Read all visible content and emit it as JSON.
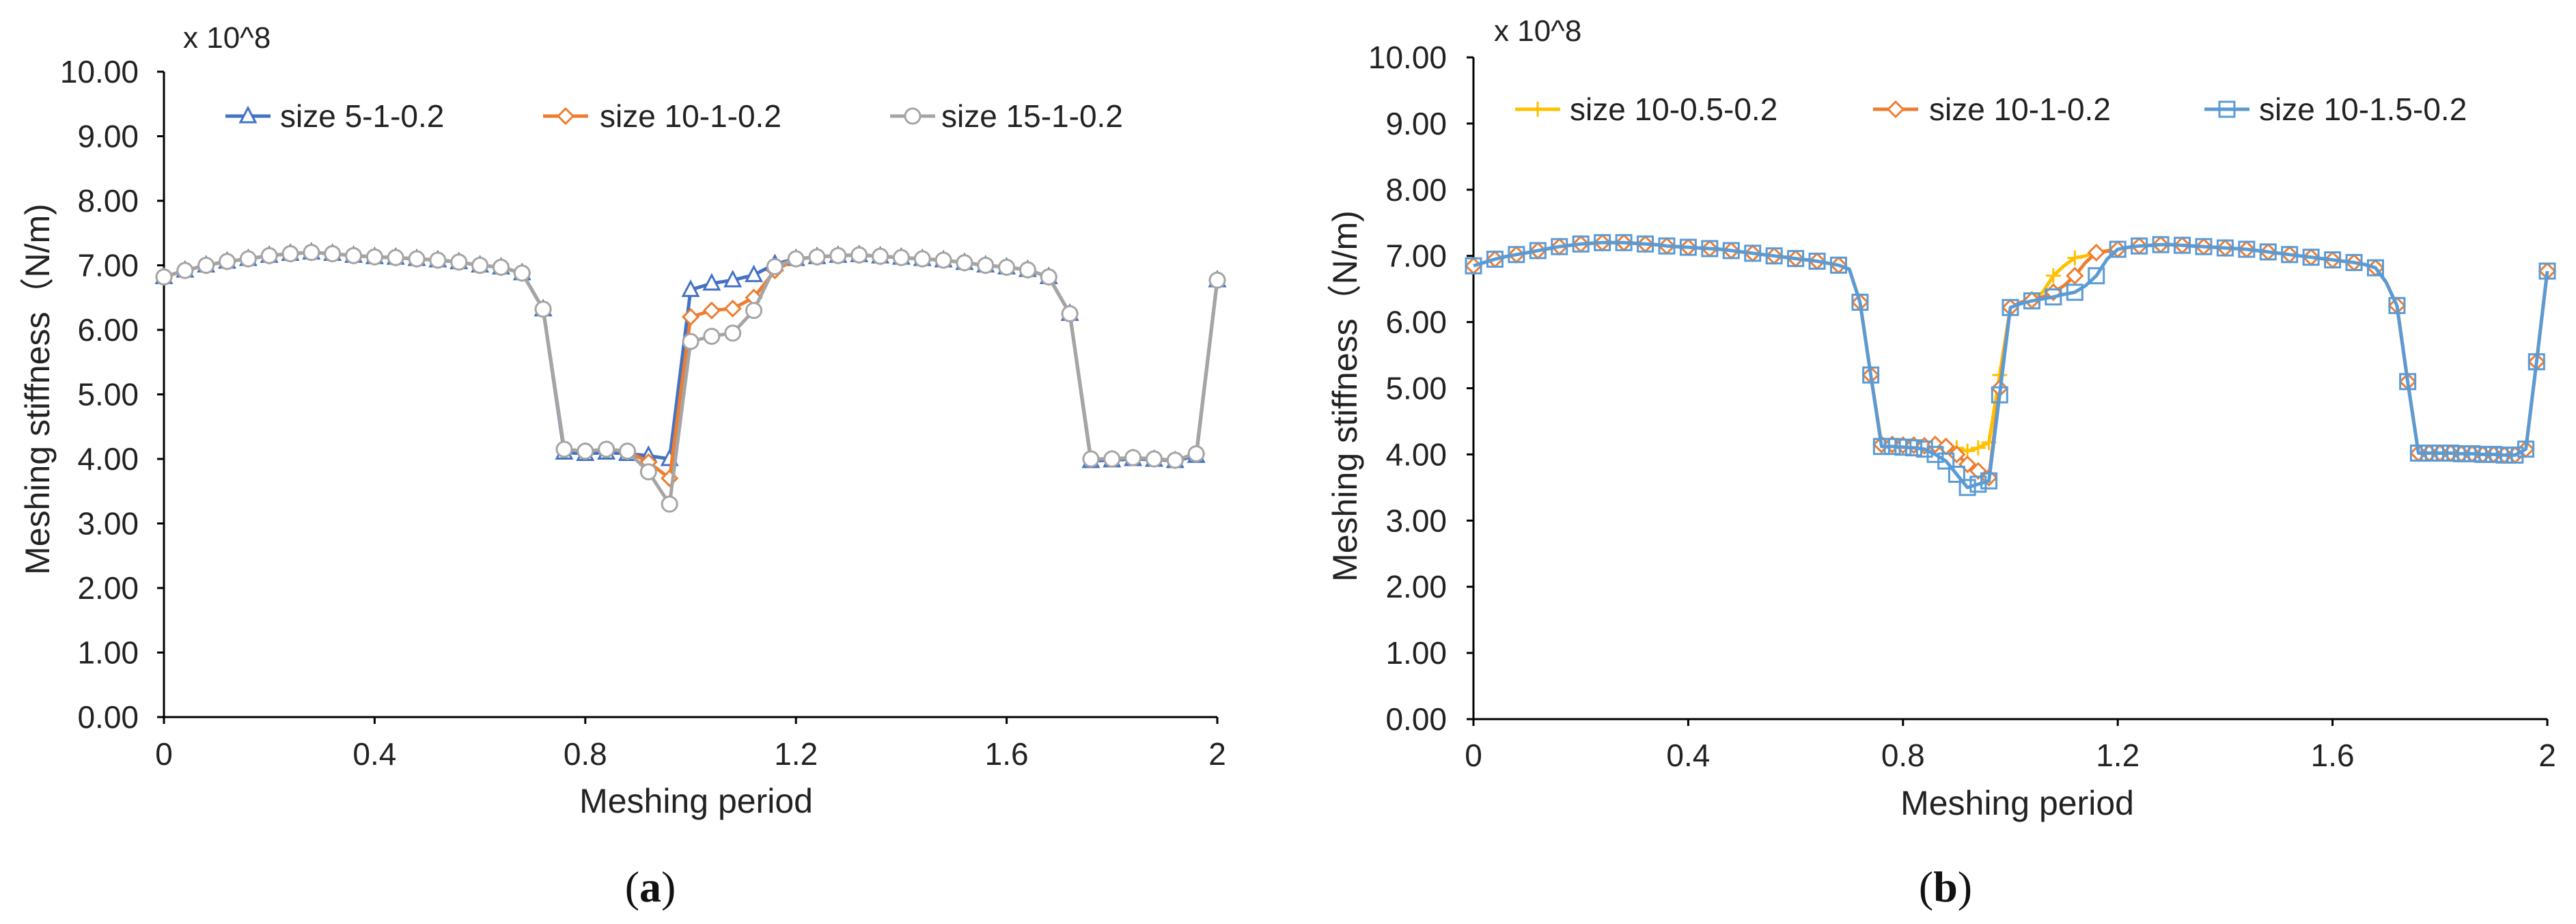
{
  "chart_data": [
    {
      "type": "line",
      "panel": "a",
      "caption_open": "(",
      "caption_letter": "a",
      "caption_close": ")",
      "multiplier": "x 10^8",
      "xlabel": "Meshing period",
      "ylabel": "Meshing stiffness（N/m)",
      "xlim": [
        0,
        2
      ],
      "ylim": [
        0,
        10
      ],
      "xticks": [
        "0",
        "0.4",
        "0.8",
        "1.2",
        "1.6",
        "2"
      ],
      "yticks": [
        "0.00",
        "1.00",
        "2.00",
        "3.00",
        "4.00",
        "5.00",
        "6.00",
        "7.00",
        "8.00",
        "9.00",
        "10.00"
      ],
      "legend_position": "top",
      "series": [
        {
          "name": "size 5-1-0.2",
          "color": "#4472C4",
          "marker": "triangle",
          "x": [
            0,
            0.04,
            0.08,
            0.12,
            0.16,
            0.2,
            0.24,
            0.28,
            0.32,
            0.36,
            0.4,
            0.44,
            0.48,
            0.52,
            0.56,
            0.6,
            0.64,
            0.68,
            0.72,
            0.76,
            0.8,
            0.84,
            0.88,
            0.92,
            0.96,
            1.0,
            1.04,
            1.08,
            1.12,
            1.16,
            1.2,
            1.24,
            1.28,
            1.32,
            1.36,
            1.4,
            1.44,
            1.48,
            1.52,
            1.56,
            1.6,
            1.64,
            1.68,
            1.72,
            1.76,
            1.8,
            1.84,
            1.88,
            1.92,
            1.96,
            2.0
          ],
          "values": [
            6.82,
            6.92,
            7.0,
            7.06,
            7.1,
            7.15,
            7.18,
            7.2,
            7.18,
            7.15,
            7.13,
            7.12,
            7.1,
            7.08,
            7.05,
            7.0,
            6.97,
            6.88,
            6.32,
            4.1,
            4.08,
            4.1,
            4.08,
            4.05,
            4.0,
            6.62,
            6.72,
            6.77,
            6.85,
            7.02,
            7.1,
            7.13,
            7.15,
            7.16,
            7.14,
            7.12,
            7.1,
            7.08,
            7.04,
            7.0,
            6.97,
            6.93,
            6.82,
            6.25,
            3.97,
            3.98,
            4.0,
            3.99,
            3.97,
            4.05,
            6.77
          ]
        },
        {
          "name": "size 10-1-0.2",
          "color": "#ED7D31",
          "marker": "diamond",
          "x": [
            0,
            0.04,
            0.08,
            0.12,
            0.16,
            0.2,
            0.24,
            0.28,
            0.32,
            0.36,
            0.4,
            0.44,
            0.48,
            0.52,
            0.56,
            0.6,
            0.64,
            0.68,
            0.72,
            0.76,
            0.8,
            0.84,
            0.88,
            0.92,
            0.96,
            1.0,
            1.04,
            1.08,
            1.12,
            1.16,
            1.2,
            1.24,
            1.28,
            1.32,
            1.36,
            1.4,
            1.44,
            1.48,
            1.52,
            1.56,
            1.6,
            1.64,
            1.68,
            1.72,
            1.76,
            1.8,
            1.84,
            1.88,
            1.92,
            1.96,
            2.0
          ],
          "values": [
            6.82,
            6.92,
            7.0,
            7.06,
            7.1,
            7.15,
            7.18,
            7.2,
            7.18,
            7.15,
            7.13,
            7.12,
            7.1,
            7.08,
            7.05,
            7.0,
            6.97,
            6.88,
            6.32,
            4.15,
            4.12,
            4.15,
            4.12,
            3.95,
            3.7,
            6.2,
            6.3,
            6.33,
            6.5,
            6.92,
            7.1,
            7.13,
            7.15,
            7.16,
            7.14,
            7.12,
            7.1,
            7.08,
            7.04,
            7.0,
            6.97,
            6.93,
            6.82,
            6.25,
            4.0,
            4.0,
            4.02,
            4.0,
            3.98,
            4.08,
            6.77
          ]
        },
        {
          "name": "size 15-1-0.2",
          "color": "#A5A5A5",
          "marker": "circle",
          "x": [
            0,
            0.04,
            0.08,
            0.12,
            0.16,
            0.2,
            0.24,
            0.28,
            0.32,
            0.36,
            0.4,
            0.44,
            0.48,
            0.52,
            0.56,
            0.6,
            0.64,
            0.68,
            0.72,
            0.76,
            0.8,
            0.84,
            0.88,
            0.92,
            0.96,
            1.0,
            1.04,
            1.08,
            1.12,
            1.16,
            1.2,
            1.24,
            1.28,
            1.32,
            1.36,
            1.4,
            1.44,
            1.48,
            1.52,
            1.56,
            1.6,
            1.64,
            1.68,
            1.72,
            1.76,
            1.8,
            1.84,
            1.88,
            1.92,
            1.96,
            2.0
          ],
          "values": [
            6.82,
            6.92,
            7.0,
            7.06,
            7.1,
            7.15,
            7.18,
            7.2,
            7.18,
            7.15,
            7.13,
            7.12,
            7.1,
            7.08,
            7.05,
            7.0,
            6.97,
            6.88,
            6.32,
            4.15,
            4.12,
            4.15,
            4.12,
            3.8,
            3.3,
            5.82,
            5.9,
            5.95,
            6.3,
            6.98,
            7.1,
            7.13,
            7.15,
            7.16,
            7.14,
            7.12,
            7.1,
            7.08,
            7.04,
            7.0,
            6.97,
            6.93,
            6.82,
            6.25,
            4.0,
            4.0,
            4.02,
            4.0,
            3.98,
            4.08,
            6.77
          ]
        }
      ]
    },
    {
      "type": "line",
      "panel": "b",
      "caption_open": "(",
      "caption_letter": "b",
      "caption_close": ")",
      "multiplier": "x 10^8",
      "xlabel": "Meshing period",
      "ylabel": "Meshing stiffness（N/m)",
      "xlim": [
        0,
        2
      ],
      "ylim": [
        0,
        10
      ],
      "xticks": [
        "0",
        "0.4",
        "0.8",
        "1.2",
        "1.6",
        "2"
      ],
      "yticks": [
        "0.00",
        "1.00",
        "2.00",
        "3.00",
        "4.00",
        "5.00",
        "6.00",
        "7.00",
        "8.00",
        "9.00",
        "10.00"
      ],
      "legend_position": "top",
      "series": [
        {
          "name": "size 10-0.5-0.2",
          "color": "#FFC000",
          "marker": "plus",
          "x": [
            0,
            0.02,
            0.04,
            0.06,
            0.08,
            0.1,
            0.12,
            0.14,
            0.16,
            0.18,
            0.2,
            0.22,
            0.24,
            0.26,
            0.28,
            0.3,
            0.32,
            0.34,
            0.36,
            0.38,
            0.4,
            0.42,
            0.44,
            0.46,
            0.48,
            0.5,
            0.52,
            0.54,
            0.56,
            0.58,
            0.6,
            0.62,
            0.64,
            0.66,
            0.68,
            0.7,
            0.72,
            0.74,
            0.76,
            0.78,
            0.8,
            0.82,
            0.84,
            0.86,
            0.88,
            0.9,
            0.92,
            0.94,
            0.96,
            0.98,
            1.0,
            1.02,
            1.04,
            1.06,
            1.08,
            1.1,
            1.12,
            1.14,
            1.16,
            1.18,
            1.2,
            1.22,
            1.24,
            1.26,
            1.28,
            1.3,
            1.32,
            1.34,
            1.36,
            1.38,
            1.4,
            1.42,
            1.44,
            1.46,
            1.48,
            1.5,
            1.52,
            1.54,
            1.56,
            1.58,
            1.6,
            1.62,
            1.64,
            1.66,
            1.68,
            1.7,
            1.72,
            1.74,
            1.76,
            1.78,
            1.8,
            1.82,
            1.84,
            1.86,
            1.88,
            1.9,
            1.92,
            1.94,
            1.96,
            1.98,
            2.0
          ],
          "values": [
            6.85,
            6.9,
            6.95,
            6.99,
            7.02,
            7.05,
            7.08,
            7.11,
            7.14,
            7.16,
            7.18,
            7.19,
            7.2,
            7.2,
            7.2,
            7.19,
            7.18,
            7.17,
            7.15,
            7.14,
            7.13,
            7.12,
            7.11,
            7.1,
            7.08,
            7.06,
            7.04,
            7.02,
            7.0,
            6.98,
            6.96,
            6.94,
            6.92,
            6.89,
            6.86,
            6.8,
            6.3,
            5.2,
            4.15,
            4.15,
            4.14,
            4.14,
            4.13,
            4.12,
            4.12,
            4.1,
            4.05,
            4.1,
            4.18,
            5.2,
            6.22,
            6.3,
            6.35,
            6.45,
            6.7,
            6.85,
            6.97,
            7.0,
            7.05,
            7.08,
            7.1,
            7.13,
            7.15,
            7.16,
            7.17,
            7.17,
            7.16,
            7.15,
            7.14,
            7.13,
            7.12,
            7.11,
            7.1,
            7.08,
            7.06,
            7.04,
            7.02,
            7.0,
            6.98,
            6.96,
            6.94,
            6.92,
            6.9,
            6.87,
            6.82,
            6.6,
            6.25,
            5.1,
            4.02,
            4.02,
            4.02,
            4.02,
            4.01,
            4.01,
            4.0,
            4.0,
            3.99,
            3.99,
            4.08,
            5.4,
            6.77
          ]
        },
        {
          "name": "size 10-1-0.2",
          "color": "#ED7D31",
          "marker": "diamond",
          "x": [
            0,
            0.02,
            0.04,
            0.06,
            0.08,
            0.1,
            0.12,
            0.14,
            0.16,
            0.18,
            0.2,
            0.22,
            0.24,
            0.26,
            0.28,
            0.3,
            0.32,
            0.34,
            0.36,
            0.38,
            0.4,
            0.42,
            0.44,
            0.46,
            0.48,
            0.5,
            0.52,
            0.54,
            0.56,
            0.58,
            0.6,
            0.62,
            0.64,
            0.66,
            0.68,
            0.7,
            0.72,
            0.74,
            0.76,
            0.78,
            0.8,
            0.82,
            0.84,
            0.86,
            0.88,
            0.9,
            0.92,
            0.94,
            0.96,
            0.98,
            1.0,
            1.02,
            1.04,
            1.06,
            1.08,
            1.1,
            1.12,
            1.14,
            1.16,
            1.18,
            1.2,
            1.22,
            1.24,
            1.26,
            1.28,
            1.3,
            1.32,
            1.34,
            1.36,
            1.38,
            1.4,
            1.42,
            1.44,
            1.46,
            1.48,
            1.5,
            1.52,
            1.54,
            1.56,
            1.58,
            1.6,
            1.62,
            1.64,
            1.66,
            1.68,
            1.7,
            1.72,
            1.74,
            1.76,
            1.78,
            1.8,
            1.82,
            1.84,
            1.86,
            1.88,
            1.9,
            1.92,
            1.94,
            1.96,
            1.98,
            2.0
          ],
          "values": [
            6.85,
            6.9,
            6.95,
            6.99,
            7.02,
            7.05,
            7.08,
            7.11,
            7.14,
            7.16,
            7.18,
            7.19,
            7.2,
            7.2,
            7.2,
            7.19,
            7.18,
            7.17,
            7.15,
            7.14,
            7.13,
            7.12,
            7.11,
            7.1,
            7.08,
            7.06,
            7.04,
            7.02,
            7.0,
            6.98,
            6.96,
            6.94,
            6.92,
            6.89,
            6.86,
            6.8,
            6.3,
            5.2,
            4.15,
            4.15,
            4.14,
            4.14,
            4.13,
            4.15,
            4.12,
            4.0,
            3.85,
            3.75,
            3.65,
            5.0,
            6.22,
            6.3,
            6.33,
            6.38,
            6.45,
            6.55,
            6.7,
            6.9,
            7.05,
            7.07,
            7.1,
            7.13,
            7.15,
            7.16,
            7.17,
            7.17,
            7.16,
            7.15,
            7.14,
            7.13,
            7.12,
            7.11,
            7.1,
            7.08,
            7.06,
            7.04,
            7.02,
            7.0,
            6.98,
            6.96,
            6.94,
            6.92,
            6.9,
            6.87,
            6.82,
            6.6,
            6.25,
            5.1,
            4.02,
            4.02,
            4.02,
            4.02,
            4.01,
            4.01,
            4.0,
            4.0,
            3.99,
            3.99,
            4.08,
            5.4,
            6.77
          ]
        },
        {
          "name": "size 10-1.5-0.2",
          "color": "#5B9BD5",
          "marker": "square",
          "x": [
            0,
            0.02,
            0.04,
            0.06,
            0.08,
            0.1,
            0.12,
            0.14,
            0.16,
            0.18,
            0.2,
            0.22,
            0.24,
            0.26,
            0.28,
            0.3,
            0.32,
            0.34,
            0.36,
            0.38,
            0.4,
            0.42,
            0.44,
            0.46,
            0.48,
            0.5,
            0.52,
            0.54,
            0.56,
            0.58,
            0.6,
            0.62,
            0.64,
            0.66,
            0.68,
            0.7,
            0.72,
            0.74,
            0.76,
            0.78,
            0.8,
            0.82,
            0.84,
            0.86,
            0.88,
            0.9,
            0.92,
            0.94,
            0.96,
            0.98,
            1.0,
            1.02,
            1.04,
            1.06,
            1.08,
            1.1,
            1.12,
            1.14,
            1.16,
            1.18,
            1.2,
            1.22,
            1.24,
            1.26,
            1.28,
            1.3,
            1.32,
            1.34,
            1.36,
            1.38,
            1.4,
            1.42,
            1.44,
            1.46,
            1.48,
            1.5,
            1.52,
            1.54,
            1.56,
            1.58,
            1.6,
            1.62,
            1.64,
            1.66,
            1.68,
            1.7,
            1.72,
            1.74,
            1.76,
            1.78,
            1.8,
            1.82,
            1.84,
            1.86,
            1.88,
            1.9,
            1.92,
            1.94,
            1.96,
            1.98,
            2.0
          ],
          "values": [
            6.85,
            6.9,
            6.95,
            6.99,
            7.02,
            7.05,
            7.08,
            7.11,
            7.14,
            7.16,
            7.18,
            7.19,
            7.2,
            7.2,
            7.2,
            7.19,
            7.18,
            7.17,
            7.15,
            7.14,
            7.13,
            7.12,
            7.11,
            7.1,
            7.08,
            7.06,
            7.04,
            7.02,
            7.0,
            6.98,
            6.96,
            6.94,
            6.92,
            6.89,
            6.86,
            6.8,
            6.3,
            5.2,
            4.12,
            4.12,
            4.11,
            4.1,
            4.08,
            4.0,
            3.9,
            3.7,
            3.5,
            3.55,
            3.6,
            4.9,
            6.22,
            6.28,
            6.32,
            6.35,
            6.38,
            6.42,
            6.45,
            6.55,
            6.7,
            6.95,
            7.1,
            7.13,
            7.15,
            7.16,
            7.17,
            7.17,
            7.16,
            7.15,
            7.14,
            7.13,
            7.12,
            7.11,
            7.1,
            7.08,
            7.06,
            7.04,
            7.02,
            7.0,
            6.98,
            6.96,
            6.94,
            6.92,
            6.9,
            6.87,
            6.82,
            6.6,
            6.25,
            5.1,
            4.02,
            4.02,
            4.02,
            4.02,
            4.01,
            4.01,
            4.0,
            4.0,
            3.99,
            3.99,
            4.08,
            5.4,
            6.77
          ]
        }
      ]
    }
  ]
}
